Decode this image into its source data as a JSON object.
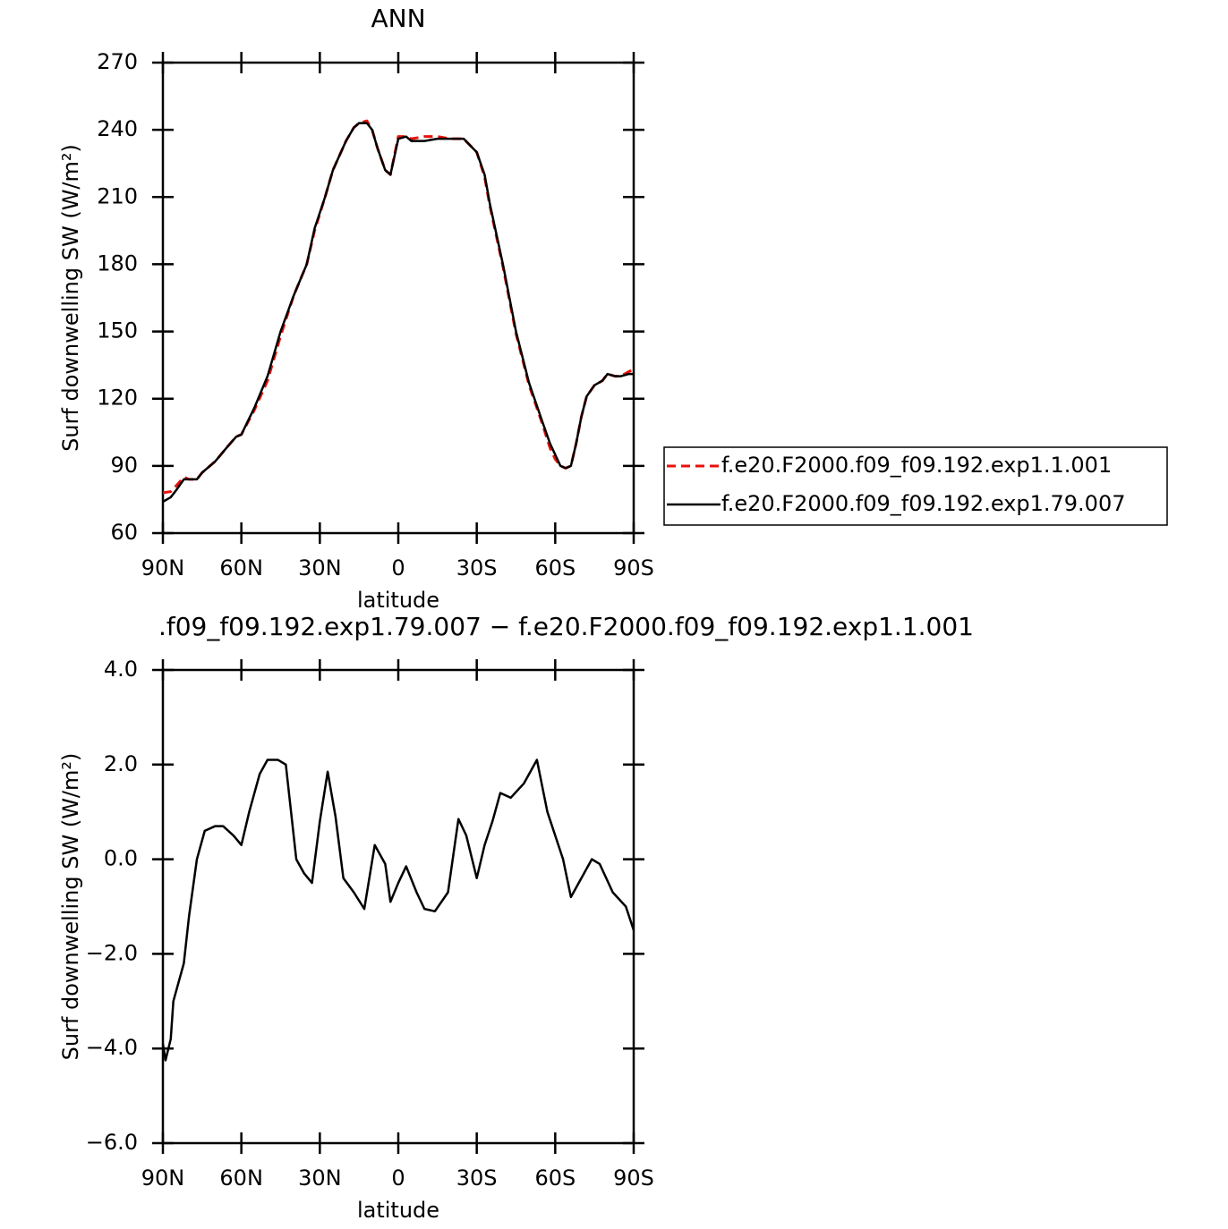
{
  "chart_data": [
    {
      "type": "line",
      "title": "ANN",
      "x_label": "latitude",
      "y_label": "Surf downwelling SW (W/m²)",
      "xlim": [
        90,
        -90
      ],
      "ylim": [
        60,
        270
      ],
      "xticks": [
        {
          "value": 90,
          "label": "90N"
        },
        {
          "value": 60,
          "label": "60N"
        },
        {
          "value": 30,
          "label": "30N"
        },
        0,
        {
          "value": -30,
          "label": "30S"
        },
        {
          "value": -60,
          "label": "60S"
        },
        {
          "value": -90,
          "label": "90S"
        }
      ],
      "yticks": [
        60,
        90,
        120,
        150,
        180,
        210,
        240,
        270
      ],
      "legend": "right",
      "x": [
        90,
        87,
        85,
        82,
        80,
        77,
        75,
        70,
        65,
        62,
        60,
        55,
        50,
        45,
        40,
        35,
        32,
        28,
        25,
        20,
        17,
        15,
        12,
        10,
        8,
        5,
        3,
        0,
        -3,
        -5,
        -10,
        -15,
        -20,
        -25,
        -30,
        -33,
        -35,
        -40,
        -45,
        -50,
        -55,
        -58,
        -60,
        -62,
        -64,
        -66,
        -68,
        -70,
        -72,
        -75,
        -78,
        -80,
        -83,
        -85,
        -88,
        -90
      ],
      "series": [
        {
          "name": "f.e20.F2000.f09_f09.192.exp1.1.001",
          "color": "#e8120c",
          "dash": true,
          "values": [
            78,
            78.5,
            81,
            85,
            84,
            84,
            87,
            92,
            99,
            103,
            104,
            115,
            128,
            148,
            166,
            180,
            195,
            210,
            222,
            235,
            241,
            243,
            244,
            240,
            232,
            222,
            220,
            237,
            237,
            236,
            237,
            237,
            236,
            236,
            230,
            219,
            206,
            179,
            149,
            126,
            109,
            98,
            93,
            90,
            89,
            90,
            100,
            112,
            121,
            126,
            128,
            131,
            130,
            130,
            132,
            133
          ]
        },
        {
          "name": "f.e20.F2000.f09_f09.192.exp1.79.007",
          "color": "#000000",
          "dash": false,
          "values": [
            74,
            76,
            79,
            84,
            84,
            84,
            87,
            92,
            99,
            103,
            104,
            116,
            130,
            150,
            166,
            180,
            196,
            210,
            222,
            235,
            241,
            243,
            243,
            240,
            232,
            222,
            220,
            236,
            237,
            235,
            235,
            236,
            236,
            236,
            230,
            220,
            207,
            180,
            150,
            127,
            110,
            100,
            95,
            90,
            89,
            90,
            100,
            112,
            121,
            126,
            128,
            131,
            130,
            130,
            131,
            131
          ]
        }
      ]
    },
    {
      "type": "line",
      "title": ".f09_f09.192.exp1.79.007 − f.e20.F2000.f09_f09.192.exp1.1.001",
      "x_label": "latitude",
      "y_label": "Surf downwelling SW (W/m²)",
      "xlim": [
        90,
        -90
      ],
      "ylim": [
        -6,
        4
      ],
      "xticks": [
        {
          "value": 90,
          "label": "90N"
        },
        {
          "value": 60,
          "label": "60N"
        },
        {
          "value": 30,
          "label": "30N"
        },
        0,
        {
          "value": -30,
          "label": "30S"
        },
        {
          "value": -60,
          "label": "60S"
        },
        {
          "value": -90,
          "label": "90S"
        }
      ],
      "yticks": [
        {
          "value": -6,
          "label": "−6.0"
        },
        {
          "value": -4,
          "label": "−4.0"
        },
        {
          "value": -2,
          "label": "−2.0"
        },
        {
          "value": 0,
          "label": "0.0"
        },
        {
          "value": 2,
          "label": "2.0"
        },
        {
          "value": 4,
          "label": "4.0"
        }
      ],
      "x": [
        90,
        89,
        87,
        86,
        82,
        80,
        77,
        74,
        70,
        67,
        63,
        60,
        57,
        53,
        50,
        46,
        43,
        39,
        36,
        33,
        30,
        27,
        24,
        21,
        17,
        13,
        9,
        5,
        3,
        0,
        -3,
        -7,
        -10,
        -14,
        -19,
        -23,
        -26,
        -30,
        -33,
        -36,
        -39,
        -43,
        -48,
        -53,
        -57,
        -63,
        -66,
        -70,
        -74,
        -77,
        -82,
        -87,
        -90
      ],
      "series": [
        {
          "color": "#000000",
          "values": [
            -3.9,
            -4.25,
            -3.8,
            -3.0,
            -2.2,
            -1.2,
            0,
            0.6,
            0.7,
            0.7,
            0.5,
            0.3,
            1.0,
            1.8,
            2.1,
            2.1,
            2.0,
            0.0,
            -0.3,
            -0.5,
            0.8,
            1.85,
            0.9,
            -0.4,
            -0.7,
            -1.05,
            0.3,
            -0.1,
            -0.9,
            -0.5,
            -0.15,
            -0.7,
            -1.05,
            -1.1,
            -0.7,
            0.85,
            0.5,
            -0.4,
            0.3,
            0.8,
            1.4,
            1.3,
            1.6,
            2.1,
            1.0,
            0.0,
            -0.8,
            -0.4,
            0.0,
            -0.1,
            -0.7,
            -1.0,
            -1.5
          ]
        }
      ]
    }
  ]
}
